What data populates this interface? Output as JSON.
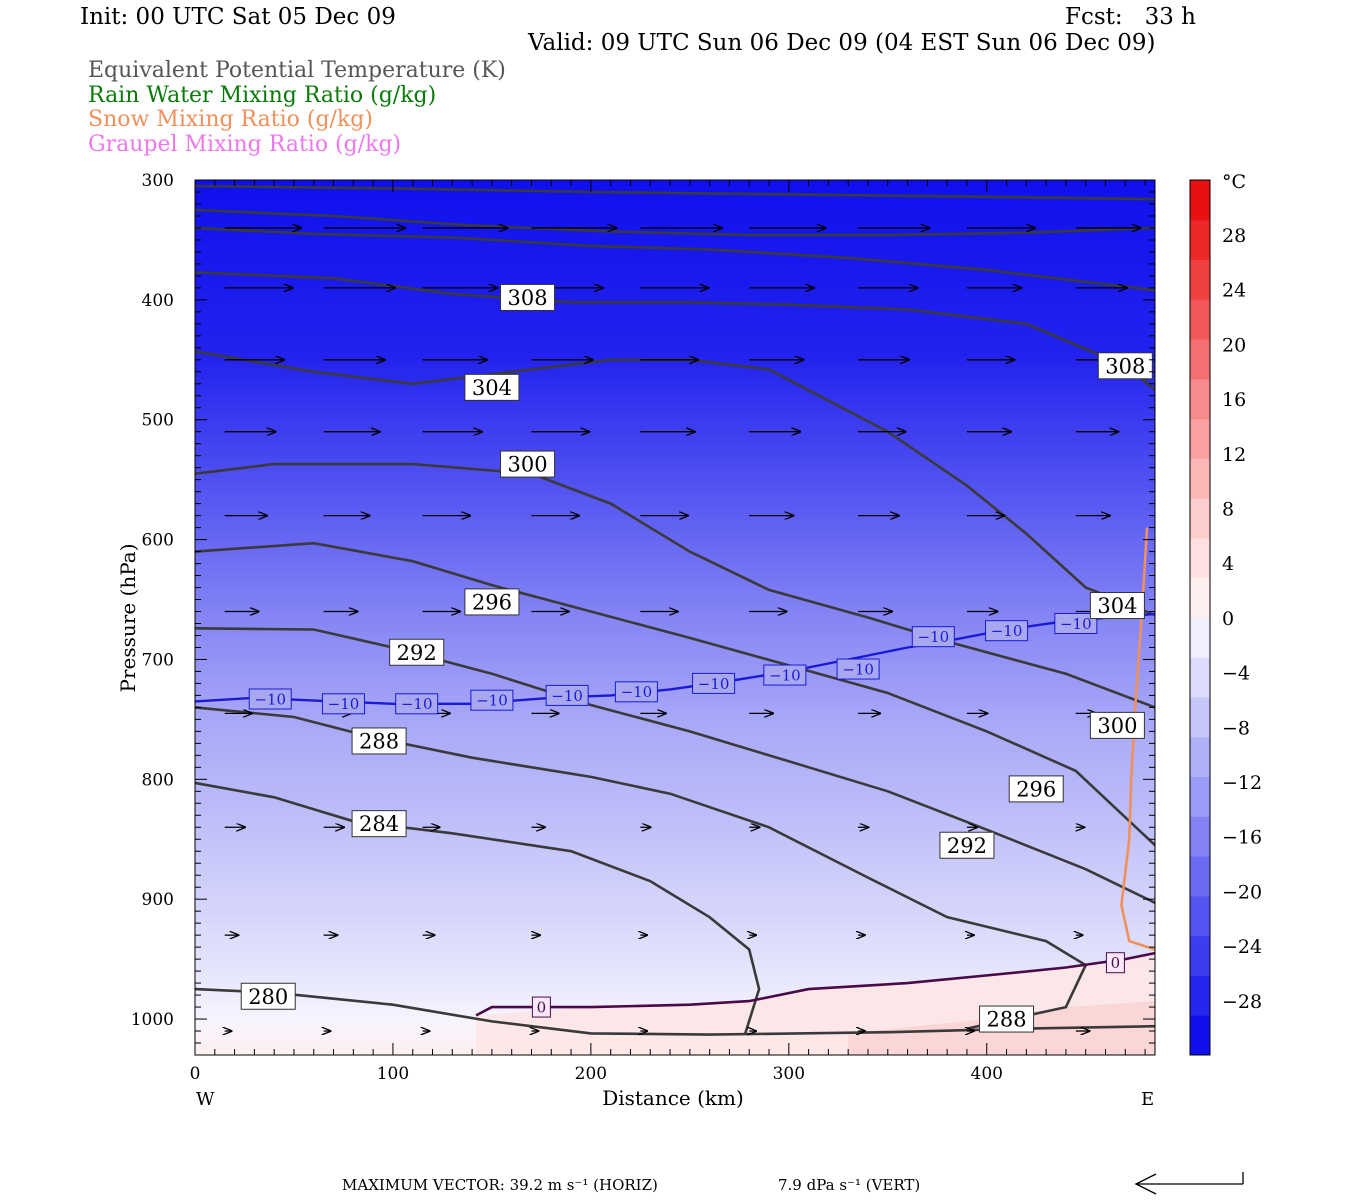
{
  "header": {
    "init": "Init: 00 UTC Sat 05 Dec 09",
    "fcst": "Fcst:   33 h",
    "valid": "Valid: 09 UTC Sun 06 Dec 09 (04 EST Sun 06 Dec 09)"
  },
  "legend": [
    {
      "text": "Equivalent Potential Temperature (K)",
      "color": "#555555"
    },
    {
      "text": "Rain Water Mixing Ratio (g/kg)",
      "color": "#0a7a0a"
    },
    {
      "text": "Snow Mixing Ratio (g/kg)",
      "color": "#f0905a"
    },
    {
      "text": "Graupel Mixing Ratio (g/kg)",
      "color": "#ee77ee"
    }
  ],
  "colorbar": {
    "unit": "°C",
    "labels": [
      "28",
      "24",
      "20",
      "16",
      "12",
      "8",
      "4",
      "0",
      "−4",
      "−8",
      "−12",
      "−16",
      "−20",
      "−24",
      "−28"
    ],
    "colors": [
      "#1010ee",
      "#2626ee",
      "#3d3df0",
      "#5555f2",
      "#6b6bf4",
      "#8383f6",
      "#9a9af7",
      "#b0b0f8",
      "#c6c6fa",
      "#dcdcfc",
      "#f0f0fe",
      "#fff0f0",
      "#fee0e0",
      "#fdcccc",
      "#fbb6b6",
      "#f9a0a0",
      "#f78a8a",
      "#f47070",
      "#f25858",
      "#ef4040",
      "#ec2828",
      "#e81010"
    ]
  },
  "footer": {
    "max_vector": "MAXIMUM VECTOR:  39.2 m s⁻¹ (HORIZ)",
    "vert": "7.9 dPa s⁻¹ (VERT)"
  },
  "chart_data": {
    "type": "cross-section",
    "xlabel": "Distance (km)",
    "ylabel": "Pressure (hPa)",
    "xlim": [
      0,
      485
    ],
    "ylim": [
      1030,
      300
    ],
    "x_ticks": [
      0,
      100,
      200,
      300,
      400
    ],
    "x_tick_labels": [
      "0",
      "100",
      "200",
      "300",
      "400"
    ],
    "y_ticks": [
      300,
      400,
      500,
      600,
      700,
      800,
      900,
      1000
    ],
    "y_tick_labels": [
      "300",
      "400",
      "500",
      "600",
      "700",
      "800",
      "900",
      "1000"
    ],
    "west_label": "W",
    "east_label": "E",
    "theta_e_contours": [
      {
        "label": "280",
        "points": [
          [
            0,
            975
          ],
          [
            40,
            978
          ],
          [
            100,
            988
          ],
          [
            150,
            1002
          ],
          [
            200,
            1012
          ],
          [
            260,
            1013
          ],
          [
            350,
            1011
          ],
          [
            420,
            1008
          ],
          [
            485,
            1006
          ]
        ],
        "label_at": [
          37,
          981
        ]
      },
      {
        "label": "284",
        "points": [
          [
            0,
            803
          ],
          [
            40,
            815
          ],
          [
            80,
            835
          ],
          [
            130,
            845
          ],
          [
            190,
            860
          ],
          [
            230,
            885
          ],
          [
            260,
            915
          ],
          [
            280,
            942
          ],
          [
            285,
            975
          ],
          [
            278,
            1012
          ]
        ],
        "label_at": [
          93,
          837
        ]
      },
      {
        "label": "288",
        "points": [
          [
            0,
            740
          ],
          [
            50,
            748
          ],
          [
            90,
            765
          ],
          [
            140,
            782
          ],
          [
            200,
            798
          ],
          [
            240,
            812
          ],
          [
            290,
            840
          ],
          [
            340,
            882
          ],
          [
            380,
            915
          ],
          [
            430,
            935
          ],
          [
            450,
            955
          ],
          [
            440,
            990
          ],
          [
            390,
            1008
          ]
        ],
        "label_at": [
          93,
          768
        ]
      },
      {
        "label": "292",
        "points": [
          [
            0,
            674
          ],
          [
            60,
            675
          ],
          [
            100,
            690
          ],
          [
            150,
            712
          ],
          [
            200,
            738
          ],
          [
            250,
            760
          ],
          [
            300,
            785
          ],
          [
            350,
            810
          ],
          [
            400,
            842
          ],
          [
            450,
            875
          ],
          [
            485,
            903
          ]
        ],
        "label_at": [
          112,
          694
        ]
      },
      {
        "label": "296",
        "points": [
          [
            0,
            610
          ],
          [
            60,
            603
          ],
          [
            110,
            618
          ],
          [
            150,
            638
          ],
          [
            200,
            660
          ],
          [
            250,
            682
          ],
          [
            300,
            705
          ],
          [
            350,
            728
          ],
          [
            400,
            760
          ],
          [
            445,
            793
          ],
          [
            485,
            855
          ]
        ],
        "label_at": [
          150,
          652
        ]
      },
      {
        "label": "300",
        "points": [
          [
            0,
            545
          ],
          [
            40,
            537
          ],
          [
            110,
            537
          ],
          [
            170,
            545
          ],
          [
            210,
            570
          ],
          [
            250,
            610
          ],
          [
            290,
            642
          ],
          [
            340,
            665
          ],
          [
            380,
            685
          ],
          [
            440,
            712
          ],
          [
            485,
            740
          ]
        ],
        "label_at": [
          168,
          537
        ]
      },
      {
        "label": "304",
        "points": [
          [
            0,
            443
          ],
          [
            60,
            460
          ],
          [
            110,
            470
          ],
          [
            160,
            460
          ],
          [
            210,
            450
          ],
          [
            250,
            450
          ],
          [
            290,
            458
          ],
          [
            350,
            510
          ],
          [
            390,
            555
          ],
          [
            420,
            595
          ],
          [
            450,
            640
          ],
          [
            485,
            663
          ]
        ],
        "label_at": [
          150,
          473
        ]
      },
      {
        "label": "308",
        "points": [
          [
            0,
            377
          ],
          [
            70,
            382
          ],
          [
            130,
            395
          ],
          [
            190,
            402
          ],
          [
            250,
            402
          ],
          [
            300,
            404
          ],
          [
            360,
            408
          ],
          [
            420,
            420
          ],
          [
            470,
            455
          ],
          [
            485,
            475
          ]
        ],
        "label_at": [
          168,
          398
        ]
      },
      {
        "label": "",
        "points": [
          [
            0,
            340
          ],
          [
            60,
            345
          ],
          [
            130,
            348
          ],
          [
            200,
            355
          ],
          [
            260,
            358
          ],
          [
            330,
            365
          ],
          [
            400,
            375
          ],
          [
            485,
            392
          ]
        ],
        "label_at": null
      },
      {
        "label": "",
        "points": [
          [
            0,
            325
          ],
          [
            70,
            330
          ],
          [
            140,
            338
          ],
          [
            210,
            343
          ],
          [
            280,
            346
          ],
          [
            350,
            346
          ],
          [
            420,
            344
          ],
          [
            485,
            340
          ]
        ],
        "label_at": null
      },
      {
        "label": "",
        "points": [
          [
            0,
            305
          ],
          [
            100,
            307
          ],
          [
            200,
            310
          ],
          [
            300,
            312
          ],
          [
            400,
            314
          ],
          [
            485,
            316
          ]
        ],
        "label_at": null
      }
    ],
    "isotherm_minus10": {
      "label": "−10",
      "points": [
        [
          0,
          735
        ],
        [
          30,
          732
        ],
        [
          70,
          735
        ],
        [
          100,
          737
        ],
        [
          140,
          737
        ],
        [
          180,
          732
        ],
        [
          210,
          730
        ],
        [
          240,
          725
        ],
        [
          270,
          718
        ],
        [
          300,
          710
        ],
        [
          330,
          700
        ],
        [
          360,
          690
        ],
        [
          385,
          683
        ],
        [
          410,
          675
        ],
        [
          440,
          668
        ],
        [
          485,
          662
        ]
      ],
      "labels_at": [
        [
          38,
          733
        ],
        [
          75,
          737
        ],
        [
          112,
          737
        ],
        [
          150,
          734
        ],
        [
          188,
          730
        ],
        [
          223,
          727
        ],
        [
          262,
          720
        ],
        [
          298,
          713
        ],
        [
          335,
          708
        ],
        [
          373,
          681
        ],
        [
          410,
          676
        ],
        [
          445,
          670
        ]
      ]
    },
    "isotherm_zero": {
      "label": "0",
      "points": [
        [
          142,
          997
        ],
        [
          150,
          990
        ],
        [
          200,
          990
        ],
        [
          250,
          988
        ],
        [
          280,
          985
        ],
        [
          310,
          975
        ],
        [
          360,
          970
        ],
        [
          410,
          962
        ],
        [
          440,
          957
        ],
        [
          470,
          950
        ],
        [
          485,
          945
        ]
      ],
      "labels_at": [
        [
          175,
          990
        ],
        [
          465,
          953
        ]
      ]
    },
    "snow_contour": {
      "points": [
        [
          481,
          590
        ],
        [
          478,
          670
        ],
        [
          475,
          740
        ],
        [
          473,
          800
        ],
        [
          472,
          850
        ],
        [
          468,
          905
        ],
        [
          472,
          935
        ],
        [
          485,
          942
        ]
      ]
    },
    "wind_arrows": [
      {
        "p": 340,
        "x": [
          15,
          65,
          115,
          170,
          225,
          280,
          335,
          390,
          445
        ],
        "len": [
          45,
          48,
          50,
          50,
          48,
          45,
          42,
          40,
          38
        ]
      },
      {
        "p": 390,
        "x": [
          15,
          65,
          115,
          170,
          225,
          280,
          335,
          390,
          445
        ],
        "len": [
          40,
          42,
          44,
          42,
          40,
          38,
          35,
          32,
          30
        ]
      },
      {
        "p": 450,
        "x": [
          15,
          65,
          115,
          170,
          225,
          280,
          335,
          390,
          445
        ],
        "len": [
          35,
          36,
          38,
          36,
          34,
          32,
          30,
          28,
          26
        ]
      },
      {
        "p": 510,
        "x": [
          15,
          65,
          115,
          170,
          225,
          280,
          335,
          390,
          445
        ],
        "len": [
          30,
          33,
          35,
          34,
          32,
          30,
          28,
          26,
          25
        ]
      },
      {
        "p": 580,
        "x": [
          15,
          65,
          115,
          170,
          225,
          280,
          335,
          390,
          445
        ],
        "len": [
          25,
          27,
          28,
          28,
          28,
          26,
          24,
          22,
          20
        ]
      },
      {
        "p": 660,
        "x": [
          15,
          65,
          115,
          170,
          225,
          280,
          335,
          390,
          445
        ],
        "len": [
          20,
          20,
          22,
          22,
          22,
          22,
          20,
          18,
          16
        ]
      },
      {
        "p": 745,
        "x": [
          15,
          65,
          115,
          170,
          225,
          280,
          335,
          390,
          445
        ],
        "len": [
          16,
          16,
          16,
          16,
          15,
          14,
          13,
          12,
          12
        ]
      },
      {
        "p": 840,
        "x": [
          15,
          65,
          115,
          170,
          225,
          280,
          335,
          390,
          445
        ],
        "len": [
          12,
          12,
          10,
          8,
          6,
          6,
          6,
          6,
          5
        ]
      },
      {
        "p": 930,
        "x": [
          15,
          65,
          115,
          170,
          225,
          280,
          335,
          390,
          445
        ],
        "len": [
          8,
          8,
          7,
          5,
          4,
          4,
          4,
          4,
          4
        ]
      },
      {
        "p": 1010,
        "x": [
          15,
          65,
          115,
          170,
          225,
          280,
          335,
          390,
          445
        ],
        "len": [
          4,
          4,
          4,
          4,
          4,
          4,
          4,
          4,
          8
        ]
      }
    ]
  }
}
